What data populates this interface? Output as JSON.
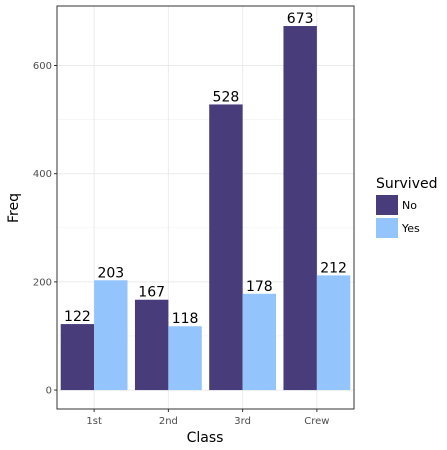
{
  "chart_data": {
    "type": "bar",
    "xlabel": "Class",
    "ylabel": "Freq",
    "categories": [
      "1st",
      "2nd",
      "3rd",
      "Crew"
    ],
    "ylim": [
      -35,
      710
    ],
    "yticks": [
      0,
      200,
      400,
      600
    ],
    "grid": true,
    "legend": {
      "title": "Survived",
      "placement": "right",
      "entries": [
        "No",
        "Yes"
      ]
    },
    "series": [
      {
        "name": "No",
        "values": [
          122,
          167,
          528,
          673
        ],
        "color": "#483D7A"
      },
      {
        "name": "Yes",
        "values": [
          203,
          118,
          178,
          212
        ],
        "color": "#94C4FC"
      }
    ]
  }
}
